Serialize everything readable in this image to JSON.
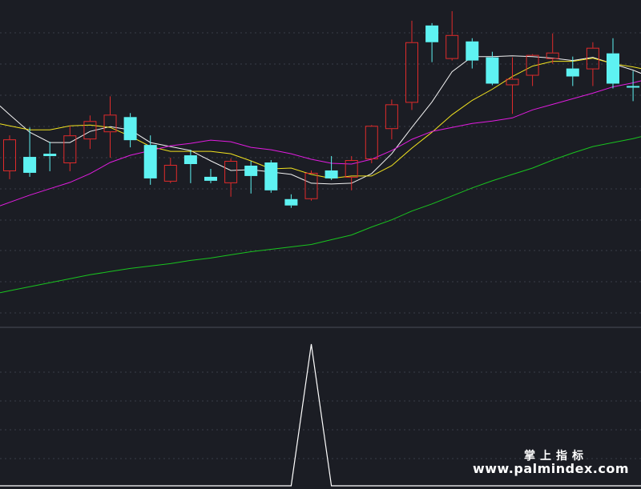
{
  "watermark": {
    "title": "掌上指标",
    "url": "www.palmindex.com"
  },
  "colors": {
    "background": "#1b1d24",
    "grid": "#3a3d47",
    "up": "#e02b2b",
    "down": "#5ef2f2",
    "ma_white": "#f2f2f2",
    "ma_yellow": "#f2e31f",
    "ma_magenta": "#e21ce0",
    "ma_green": "#19c41f",
    "indicator": "#ffffff"
  },
  "chart_data": [
    {
      "type": "candlestick",
      "title": "",
      "grid": "dashed horizontal",
      "ylim": [
        0,
        410
      ],
      "candles": [
        {
          "o": 195,
          "c": 235,
          "h": 240,
          "l": 185
        },
        {
          "o": 213,
          "c": 193,
          "h": 250,
          "l": 188
        },
        {
          "o": 217,
          "c": 214,
          "h": 232,
          "l": 195
        },
        {
          "o": 205,
          "c": 240,
          "h": 252,
          "l": 195
        },
        {
          "o": 235,
          "c": 258,
          "h": 265,
          "l": 223
        },
        {
          "o": 244,
          "c": 266,
          "h": 289,
          "l": 212
        },
        {
          "o": 263,
          "c": 234,
          "h": 268,
          "l": 225
        },
        {
          "o": 228,
          "c": 186,
          "h": 240,
          "l": 178
        },
        {
          "o": 182,
          "c": 203,
          "h": 212,
          "l": 180
        },
        {
          "o": 215,
          "c": 204,
          "h": 222,
          "l": 180
        },
        {
          "o": 188,
          "c": 183,
          "h": 198,
          "l": 180
        },
        {
          "o": 180,
          "c": 208,
          "h": 211,
          "l": 163
        },
        {
          "o": 202,
          "c": 189,
          "h": 208,
          "l": 167
        },
        {
          "o": 206,
          "c": 171,
          "h": 209,
          "l": 168
        },
        {
          "o": 160,
          "c": 152,
          "h": 166,
          "l": 149
        },
        {
          "o": 160,
          "c": 193,
          "h": 196,
          "l": 158
        },
        {
          "o": 196,
          "c": 186,
          "h": 214,
          "l": 184
        },
        {
          "o": 187,
          "c": 209,
          "h": 214,
          "l": 171
        },
        {
          "o": 210,
          "c": 252,
          "h": 253,
          "l": 205
        },
        {
          "o": 248,
          "c": 279,
          "h": 285,
          "l": 235
        },
        {
          "o": 281,
          "c": 357,
          "h": 384,
          "l": 272
        },
        {
          "o": 378,
          "c": 357,
          "h": 381,
          "l": 332
        },
        {
          "o": 336,
          "c": 366,
          "h": 396,
          "l": 334
        },
        {
          "o": 358,
          "c": 334,
          "h": 362,
          "l": 324
        },
        {
          "o": 338,
          "c": 305,
          "h": 345,
          "l": 303
        },
        {
          "o": 303,
          "c": 311,
          "h": 338,
          "l": 267
        },
        {
          "o": 315,
          "c": 341,
          "h": 342,
          "l": 302
        },
        {
          "o": 336,
          "c": 344,
          "h": 368,
          "l": 330
        },
        {
          "o": 324,
          "c": 314,
          "h": 339,
          "l": 302
        },
        {
          "o": 323,
          "c": 350,
          "h": 357,
          "l": 302
        },
        {
          "o": 343,
          "c": 305,
          "h": 362,
          "l": 299
        },
        {
          "o": 302,
          "c": 300,
          "h": 321,
          "l": 283
        }
      ],
      "series": [
        {
          "values": [
            266,
            244,
            231,
            231,
            245,
            251,
            247,
            231,
            226,
            221,
            208,
            196,
            197,
            194,
            191,
            180,
            179,
            180,
            192,
            217,
            250,
            282,
            320,
            339,
            339,
            340,
            339,
            337,
            334,
            338,
            330,
            322
          ]
        },
        {
          "values": [
            252,
            247,
            247,
            252,
            253,
            250,
            239,
            226,
            220,
            220,
            220,
            217,
            208,
            198,
            199,
            191,
            186,
            189,
            189,
            202,
            224,
            244,
            266,
            284,
            298,
            314,
            327,
            333,
            333,
            337,
            330,
            326
          ]
        },
        {
          "values": [
            156,
            165,
            173,
            181,
            192,
            206,
            215,
            221,
            227,
            230,
            234,
            232,
            225,
            222,
            217,
            210,
            205,
            204,
            210,
            221,
            235,
            245,
            250,
            255,
            258,
            262,
            272,
            279,
            286,
            293,
            301,
            306
          ]
        },
        {
          "values": [
            45,
            50,
            55,
            60,
            65,
            69,
            73,
            76,
            79,
            83,
            86,
            90,
            94,
            97,
            100,
            103,
            109,
            115,
            125,
            134,
            145,
            154,
            164,
            174,
            183,
            191,
            199,
            209,
            218,
            226,
            231,
            236
          ]
        }
      ]
    },
    {
      "type": "line",
      "title": "",
      "grid": "dashed horizontal",
      "ylim": [
        0,
        1
      ],
      "series": [
        {
          "values": [
            0,
            0,
            0,
            0,
            0,
            0,
            0,
            0,
            0,
            0,
            0,
            0,
            0,
            0,
            0,
            1,
            0,
            0,
            0,
            0,
            0,
            0,
            0,
            0,
            0,
            0,
            0,
            0,
            0,
            0,
            0,
            0
          ]
        }
      ]
    }
  ]
}
